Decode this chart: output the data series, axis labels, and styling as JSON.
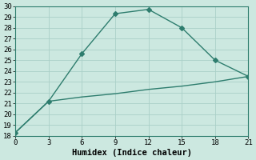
{
  "line1_x": [
    0,
    3,
    6,
    9,
    12,
    15,
    18,
    21
  ],
  "line1_y": [
    18.3,
    21.2,
    25.6,
    29.3,
    29.7,
    28.0,
    25.0,
    23.5
  ],
  "line2_x": [
    0,
    3,
    6,
    9,
    12,
    15,
    18,
    21
  ],
  "line2_y": [
    18.3,
    21.2,
    21.6,
    21.9,
    22.3,
    22.6,
    23.0,
    23.5
  ],
  "line_color": "#2e7d6e",
  "bg_color": "#cce8e0",
  "grid_color": "#aacfc7",
  "border_color": "#2e7d6e",
  "xlabel": "Humidex (Indice chaleur)",
  "xlim": [
    0,
    21
  ],
  "ylim": [
    18,
    30
  ],
  "xticks": [
    0,
    3,
    6,
    9,
    12,
    15,
    18,
    21
  ],
  "yticks": [
    18,
    19,
    20,
    21,
    22,
    23,
    24,
    25,
    26,
    27,
    28,
    29,
    30
  ],
  "xlabel_fontsize": 7.5,
  "tick_fontsize": 6.5,
  "marker": "D",
  "markersize": 3,
  "linewidth": 1.0
}
